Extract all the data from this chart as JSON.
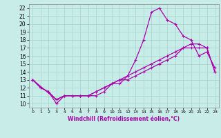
{
  "title": "",
  "xlabel": "Windchill (Refroidissement éolien,°C)",
  "bg_color": "#c8ece8",
  "grid_color": "#aad8d0",
  "line_color": "#aa00aa",
  "xlim": [
    -0.5,
    23.5
  ],
  "ylim": [
    9.5,
    22.5
  ],
  "xticks": [
    0,
    1,
    2,
    3,
    4,
    5,
    6,
    7,
    8,
    9,
    10,
    11,
    12,
    13,
    14,
    15,
    16,
    17,
    18,
    19,
    20,
    21,
    22,
    23
  ],
  "yticks": [
    10,
    11,
    12,
    13,
    14,
    15,
    16,
    17,
    18,
    19,
    20,
    21,
    22
  ],
  "line1_x": [
    0,
    1,
    2,
    3,
    4,
    5,
    6,
    7,
    8,
    9,
    10,
    11,
    12,
    13,
    14,
    15,
    16,
    17,
    18,
    19,
    20,
    21,
    22,
    23
  ],
  "line1_y": [
    13,
    12,
    11.5,
    10,
    11,
    11,
    11,
    11,
    11,
    11.5,
    12.5,
    12.5,
    13.5,
    15.5,
    18,
    21.5,
    22,
    20.5,
    20,
    18.5,
    18,
    16,
    16.5,
    14.5
  ],
  "line2_x": [
    0,
    1,
    2,
    3,
    4,
    5,
    6,
    7,
    8,
    9,
    10,
    11,
    12,
    13,
    14,
    15,
    16,
    17,
    18,
    19,
    20,
    21,
    22,
    23
  ],
  "line2_y": [
    13,
    12,
    11.5,
    10.5,
    11,
    11,
    11,
    11,
    11.5,
    12,
    12.5,
    13,
    13.5,
    14,
    14.5,
    15,
    15.5,
    16,
    16.5,
    17,
    17.5,
    17.5,
    17,
    14
  ],
  "line3_x": [
    0,
    3,
    4,
    5,
    6,
    7,
    8,
    9,
    10,
    11,
    12,
    13,
    14,
    15,
    16,
    17,
    18,
    19,
    20,
    21,
    22,
    23
  ],
  "line3_y": [
    13,
    10.5,
    11,
    11,
    11,
    11,
    11.5,
    12,
    12.5,
    13,
    13,
    13.5,
    14,
    14.5,
    15,
    15.5,
    16,
    17,
    17,
    17,
    17,
    14
  ]
}
